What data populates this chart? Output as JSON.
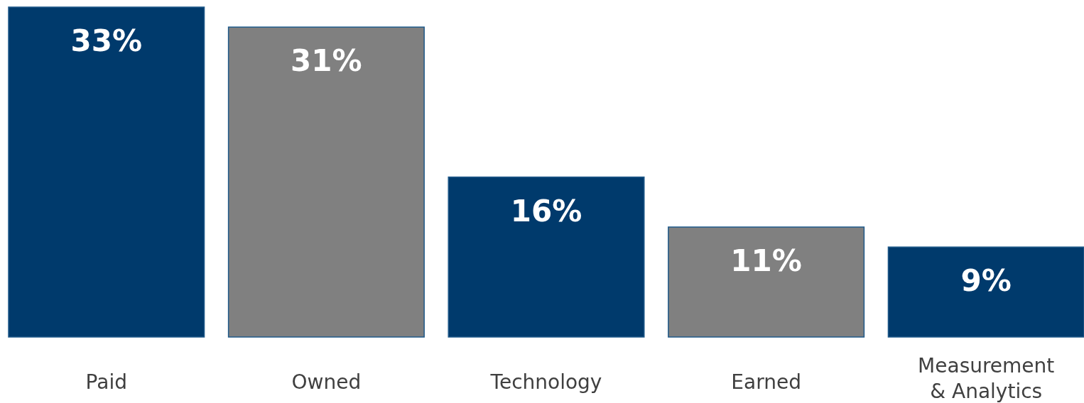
{
  "chart_data": {
    "type": "bar",
    "categories": [
      "Paid",
      "Owned",
      "Technology",
      "Earned",
      "Measurement & Analytics"
    ],
    "values": [
      33,
      31,
      16,
      11,
      9
    ],
    "value_labels": [
      "33%",
      "31%",
      "16%",
      "11%",
      "9%"
    ],
    "colors": [
      "#003a6c",
      "#808080",
      "#003a6c",
      "#808080",
      "#003a6c"
    ]
  }
}
